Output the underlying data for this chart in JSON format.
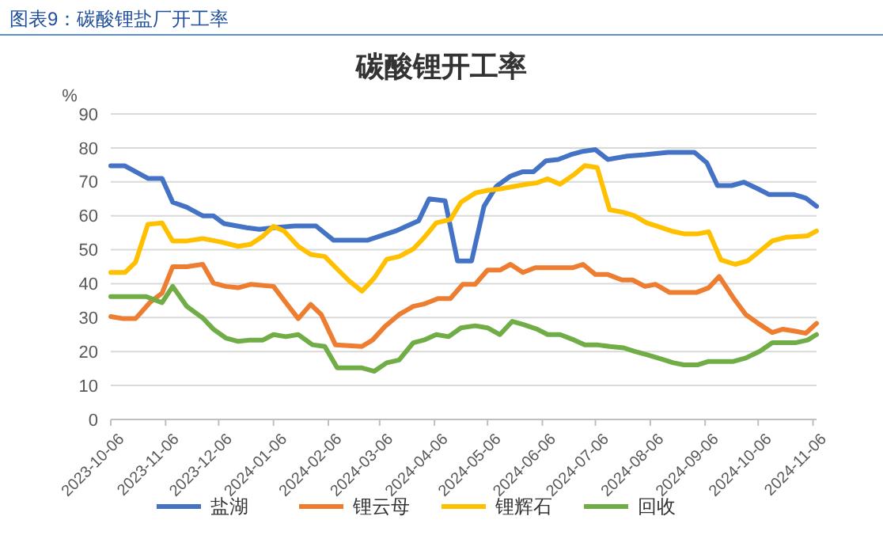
{
  "chart_data": {
    "type": "line",
    "title": "图表9：碳酸锂盐厂开工率",
    "subtitle": "碳酸锂开工率",
    "ylabel": "%",
    "xlim": [
      "2023-10-06",
      "2024-11-08"
    ],
    "xticks": [
      "2023-10-06",
      "2023-11-06",
      "2023-12-06",
      "2024-01-06",
      "2024-02-06",
      "2024-03-06",
      "2024-04-06",
      "2024-05-06",
      "2024-06-06",
      "2024-07-06",
      "2024-08-06",
      "2024-09-06",
      "2024-10-06",
      "2024-11-06"
    ],
    "ylim": [
      0,
      90
    ],
    "yticks": [
      0,
      10,
      20,
      30,
      40,
      50,
      60,
      70,
      80,
      90
    ],
    "grid": "y",
    "legend": "bottom",
    "series": [
      {
        "name": "盐湖",
        "color": "#4472c4",
        "x": [
          "2023-10-06",
          "2023-10-14",
          "2023-10-20",
          "2023-10-27",
          "2023-11-04",
          "2023-11-10",
          "2023-11-18",
          "2023-11-27",
          "2023-12-03",
          "2023-12-09",
          "2023-12-22",
          "2023-12-29",
          "2024-01-06",
          "2024-01-18",
          "2024-01-30",
          "2024-02-09",
          "2024-02-28",
          "2024-03-15",
          "2024-03-28",
          "2024-04-03",
          "2024-04-12",
          "2024-04-19",
          "2024-04-27",
          "2024-05-04",
          "2024-05-11",
          "2024-05-19",
          "2024-05-26",
          "2024-06-01",
          "2024-06-08",
          "2024-06-15",
          "2024-06-22",
          "2024-06-29",
          "2024-07-06",
          "2024-07-13",
          "2024-07-24",
          "2024-08-03",
          "2024-08-16",
          "2024-08-31",
          "2024-09-07",
          "2024-09-13",
          "2024-09-21",
          "2024-09-28",
          "2024-10-06",
          "2024-10-12",
          "2024-10-26",
          "2024-11-02",
          "2024-11-08"
        ],
        "values": [
          74.7,
          74.7,
          73,
          71,
          71,
          64,
          62.5,
          60,
          60,
          57.7,
          56.5,
          56,
          56.5,
          57,
          57,
          52.8,
          52.8,
          55.5,
          58.5,
          65,
          64.4,
          46.7,
          46.7,
          62.8,
          68.7,
          71.7,
          73,
          73,
          76.2,
          76.6,
          78,
          79,
          79.5,
          76.6,
          77.6,
          78,
          78.7,
          78.7,
          75.6,
          68.9,
          68.9,
          69.9,
          67.9,
          66.3,
          66.3,
          65.2,
          62.8
        ]
      },
      {
        "name": "锂云母",
        "color": "#ed7d31",
        "x": [
          "2023-10-06",
          "2023-10-13",
          "2023-10-20",
          "2023-10-28",
          "2023-11-04",
          "2023-11-10",
          "2023-11-18",
          "2023-11-27",
          "2023-12-03",
          "2023-12-10",
          "2023-12-17",
          "2023-12-24",
          "2024-01-06",
          "2024-01-13",
          "2024-01-20",
          "2024-01-27",
          "2024-02-02",
          "2024-02-10",
          "2024-02-25",
          "2024-03-02",
          "2024-03-09",
          "2024-03-17",
          "2024-03-25",
          "2024-03-31",
          "2024-04-08",
          "2024-04-15",
          "2024-04-22",
          "2024-04-29",
          "2024-05-06",
          "2024-05-13",
          "2024-05-19",
          "2024-05-26",
          "2024-06-02",
          "2024-06-23",
          "2024-06-29",
          "2024-07-06",
          "2024-07-13",
          "2024-07-21",
          "2024-07-27",
          "2024-08-03",
          "2024-08-09",
          "2024-08-17",
          "2024-09-01",
          "2024-09-08",
          "2024-09-14",
          "2024-09-22",
          "2024-09-29",
          "2024-10-06",
          "2024-10-14",
          "2024-10-20",
          "2024-10-27",
          "2024-11-02",
          "2024-11-08"
        ],
        "values": [
          30.3,
          29.7,
          29.7,
          34.4,
          37.2,
          45,
          45,
          45.7,
          40.2,
          39.2,
          38.8,
          39.8,
          39.2,
          34.4,
          29.7,
          33.9,
          30.9,
          22,
          21.5,
          23.4,
          27.4,
          30.9,
          33.3,
          34,
          35.6,
          35.6,
          39.8,
          39.8,
          44,
          44,
          45.7,
          43.3,
          44.7,
          44.7,
          45.7,
          42.7,
          42.7,
          41.1,
          41.1,
          39.2,
          39.8,
          37.4,
          37.4,
          38.8,
          42.1,
          35.8,
          30.9,
          28.3,
          25.6,
          26.6,
          26,
          25.4,
          28.3
        ]
      },
      {
        "name": "锂辉石",
        "color": "#ffc000",
        "x": [
          "2023-10-06",
          "2023-10-14",
          "2023-10-20",
          "2023-10-27",
          "2023-11-04",
          "2023-11-10",
          "2023-11-18",
          "2023-11-27",
          "2023-12-08",
          "2023-12-17",
          "2023-12-24",
          "2023-12-31",
          "2024-01-06",
          "2024-01-12",
          "2024-01-20",
          "2024-01-27",
          "2024-02-04",
          "2024-02-11",
          "2024-02-18",
          "2024-02-25",
          "2024-03-03",
          "2024-03-10",
          "2024-03-17",
          "2024-03-25",
          "2024-03-31",
          "2024-04-07",
          "2024-04-15",
          "2024-04-21",
          "2024-04-29",
          "2024-05-06",
          "2024-05-13",
          "2024-05-28",
          "2024-06-03",
          "2024-06-09",
          "2024-06-16",
          "2024-06-24",
          "2024-06-30",
          "2024-07-07",
          "2024-07-14",
          "2024-07-22",
          "2024-07-28",
          "2024-08-04",
          "2024-08-10",
          "2024-08-18",
          "2024-08-25",
          "2024-09-02",
          "2024-09-08",
          "2024-09-15",
          "2024-09-23",
          "2024-09-30",
          "2024-10-07",
          "2024-10-14",
          "2024-10-22",
          "2024-11-03",
          "2024-11-08"
        ],
        "values": [
          43.3,
          43.3,
          46.3,
          57.5,
          57.9,
          52.6,
          52.6,
          53.3,
          52.2,
          51,
          51.6,
          54,
          56.9,
          55.5,
          51,
          48.6,
          48,
          44.3,
          40.7,
          37.8,
          41.7,
          47.2,
          48,
          50.2,
          53.5,
          57.9,
          58.9,
          64,
          66.7,
          67.5,
          67.9,
          69.3,
          69.7,
          70.9,
          69.3,
          72.2,
          74.8,
          74.2,
          61.8,
          61,
          60,
          57.9,
          56.9,
          55.5,
          54.7,
          54.7,
          55.3,
          47,
          45.7,
          46.7,
          49.6,
          52.6,
          53.7,
          54.1,
          55.5
        ]
      },
      {
        "name": "回收",
        "color": "#70ad47",
        "x": [
          "2023-10-06",
          "2023-10-26",
          "2023-11-04",
          "2023-11-10",
          "2023-11-18",
          "2023-11-27",
          "2023-12-03",
          "2023-12-10",
          "2023-12-17",
          "2023-12-24",
          "2023-12-31",
          "2024-01-06",
          "2024-01-13",
          "2024-01-20",
          "2024-01-28",
          "2024-02-04",
          "2024-02-11",
          "2024-02-25",
          "2024-03-03",
          "2024-03-10",
          "2024-03-17",
          "2024-03-25",
          "2024-03-31",
          "2024-04-07",
          "2024-04-14",
          "2024-04-21",
          "2024-04-29",
          "2024-05-06",
          "2024-05-13",
          "2024-05-20",
          "2024-05-26",
          "2024-06-03",
          "2024-06-09",
          "2024-06-16",
          "2024-06-24",
          "2024-06-30",
          "2024-07-07",
          "2024-07-14",
          "2024-07-22",
          "2024-07-28",
          "2024-08-04",
          "2024-08-13",
          "2024-08-19",
          "2024-08-25",
          "2024-09-02",
          "2024-09-08",
          "2024-09-15",
          "2024-09-22",
          "2024-09-29",
          "2024-10-07",
          "2024-10-14",
          "2024-10-22",
          "2024-10-27",
          "2024-11-03",
          "2024-11-08"
        ],
        "values": [
          36.2,
          36.2,
          34.4,
          39.2,
          33.3,
          29.9,
          26.6,
          24,
          23,
          23.4,
          23.4,
          25,
          24.4,
          25,
          22,
          21.5,
          15.2,
          15.2,
          14.2,
          16.7,
          17.5,
          22.6,
          23.4,
          25,
          24.4,
          27,
          27.6,
          27,
          25,
          28.9,
          28,
          26.6,
          25,
          25,
          23.4,
          22,
          22,
          21.5,
          21.1,
          20.1,
          19.1,
          17.7,
          16.7,
          16.1,
          16.1,
          17.1,
          17.1,
          17.1,
          18.1,
          20.1,
          22.6,
          22.6,
          22.6,
          23.4,
          25
        ]
      }
    ]
  }
}
